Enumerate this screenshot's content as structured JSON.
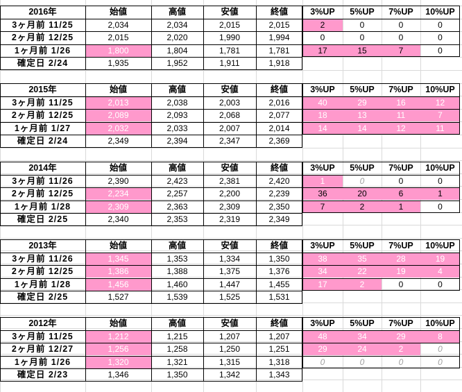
{
  "headers": [
    "始値",
    "高値",
    "安値",
    "終値",
    "3%UP",
    "5%UP",
    "7%UP",
    "10%UP"
  ],
  "colors": {
    "highlight": "#ff99cc",
    "grid": "#d9d9d9",
    "border": "#000000"
  },
  "blocks": [
    {
      "year": "2016年",
      "rows": [
        {
          "label": "3ヶ月前  11/25",
          "prices": [
            "2,034",
            "2,034",
            "2,015",
            "2,015"
          ],
          "ups": [
            "2",
            "0",
            "0",
            "0"
          ],
          "pink_open": false,
          "pink_ups": [
            true,
            false,
            false,
            false
          ],
          "italic_ups": [
            false,
            false,
            false,
            false
          ]
        },
        {
          "label": "2ヶ月前  12/25",
          "prices": [
            "2,015",
            "2,020",
            "1,990",
            "1,994"
          ],
          "ups": [
            "0",
            "0",
            "0",
            "0"
          ],
          "pink_open": false,
          "pink_ups": [
            false,
            false,
            false,
            false
          ],
          "italic_ups": [
            false,
            false,
            false,
            false
          ]
        },
        {
          "label": "1ヶ月前  1/26",
          "prices": [
            "1,800",
            "1,804",
            "1,781",
            "1,781"
          ],
          "ups": [
            "17",
            "15",
            "7",
            "0"
          ],
          "pink_open": true,
          "pink_ups": [
            true,
            true,
            true,
            false
          ],
          "italic_ups": [
            false,
            false,
            false,
            false
          ]
        },
        {
          "label": "確定日  2/24",
          "prices": [
            "1,935",
            "1,952",
            "1,911",
            "1,918"
          ],
          "ups": [
            "",
            "",
            "",
            ""
          ],
          "pink_open": false,
          "pink_ups": [
            false,
            false,
            false,
            false
          ],
          "italic_ups": [
            false,
            false,
            false,
            false
          ]
        }
      ]
    },
    {
      "year": "2015年",
      "rows": [
        {
          "label": "3ヶ月前  11/25",
          "prices": [
            "2,013",
            "2,038",
            "2,003",
            "2,016"
          ],
          "ups": [
            "40",
            "29",
            "16",
            "12"
          ],
          "pink_open": true,
          "pink_ups": [
            true,
            true,
            true,
            true
          ],
          "italic_ups": [
            false,
            false,
            false,
            false
          ]
        },
        {
          "label": "2ヶ月前  12/25",
          "prices": [
            "2,089",
            "2,093",
            "2,068",
            "2,077"
          ],
          "ups": [
            "18",
            "13",
            "11",
            "7"
          ],
          "pink_open": true,
          "pink_ups": [
            true,
            true,
            true,
            true
          ],
          "italic_ups": [
            false,
            false,
            false,
            false
          ]
        },
        {
          "label": "1ヶ月前  1/27",
          "prices": [
            "2,032",
            "2,033",
            "2,007",
            "2,014"
          ],
          "ups": [
            "14",
            "14",
            "12",
            "11"
          ],
          "pink_open": true,
          "pink_ups": [
            true,
            true,
            true,
            true
          ],
          "italic_ups": [
            false,
            false,
            false,
            false
          ]
        },
        {
          "label": "確定日  2/24",
          "prices": [
            "2,349",
            "2,394",
            "2,347",
            "2,369"
          ],
          "ups": [
            "",
            "",
            "",
            ""
          ],
          "pink_open": false,
          "pink_ups": [
            false,
            false,
            false,
            false
          ],
          "italic_ups": [
            false,
            false,
            false,
            false
          ]
        }
      ]
    },
    {
      "year": "2014年",
      "rows": [
        {
          "label": "3ヶ月前  11/26",
          "prices": [
            "2,390",
            "2,423",
            "2,381",
            "2,420"
          ],
          "ups": [
            "1",
            "0",
            "0",
            "0"
          ],
          "pink_open": false,
          "pink_ups": [
            true,
            false,
            false,
            false
          ],
          "italic_ups": [
            false,
            true,
            false,
            false
          ]
        },
        {
          "label": "2ヶ月前  12/25",
          "prices": [
            "2,234",
            "2,257",
            "2,200",
            "2,239"
          ],
          "ups": [
            "36",
            "20",
            "6",
            "1"
          ],
          "pink_open": true,
          "pink_ups": [
            true,
            true,
            true,
            true
          ],
          "italic_ups": [
            false,
            false,
            false,
            false
          ]
        },
        {
          "label": "1ヶ月前  1/28",
          "prices": [
            "2,309",
            "2,363",
            "2,309",
            "2,350"
          ],
          "ups": [
            "7",
            "2",
            "1",
            "0"
          ],
          "pink_open": true,
          "pink_ups": [
            true,
            true,
            true,
            false
          ],
          "italic_ups": [
            false,
            false,
            false,
            false
          ]
        },
        {
          "label": "確定日  2/25",
          "prices": [
            "2,340",
            "2,353",
            "2,319",
            "2,349"
          ],
          "ups": [
            "",
            "",
            "",
            ""
          ],
          "pink_open": false,
          "pink_ups": [
            false,
            false,
            false,
            false
          ],
          "italic_ups": [
            false,
            false,
            false,
            false
          ]
        }
      ]
    },
    {
      "year": "2013年",
      "rows": [
        {
          "label": "3ヶ月前  11/26",
          "prices": [
            "1,345",
            "1,353",
            "1,334",
            "1,350"
          ],
          "ups": [
            "38",
            "35",
            "28",
            "19"
          ],
          "pink_open": true,
          "pink_ups": [
            true,
            true,
            true,
            true
          ],
          "italic_ups": [
            false,
            false,
            false,
            false
          ]
        },
        {
          "label": "2ヶ月前  12/25",
          "prices": [
            "1,386",
            "1,388",
            "1,375",
            "1,376"
          ],
          "ups": [
            "34",
            "22",
            "19",
            "4"
          ],
          "pink_open": true,
          "pink_ups": [
            true,
            true,
            true,
            true
          ],
          "italic_ups": [
            false,
            false,
            false,
            false
          ]
        },
        {
          "label": "1ヶ月前  1/28",
          "prices": [
            "1,456",
            "1,460",
            "1,447",
            "1,455"
          ],
          "ups": [
            "17",
            "2",
            "0",
            "0"
          ],
          "pink_open": true,
          "pink_ups": [
            true,
            true,
            false,
            false
          ],
          "italic_ups": [
            false,
            false,
            false,
            false
          ]
        },
        {
          "label": "確定日  2/25",
          "prices": [
            "1,527",
            "1,539",
            "1,525",
            "1,531"
          ],
          "ups": [
            "",
            "",
            "",
            ""
          ],
          "pink_open": false,
          "pink_ups": [
            false,
            false,
            false,
            false
          ],
          "italic_ups": [
            false,
            false,
            false,
            false
          ]
        }
      ]
    },
    {
      "year": "2012年",
      "rows": [
        {
          "label": "3ヶ月前  11/25",
          "prices": [
            "1,212",
            "1,215",
            "1,207",
            "1,207"
          ],
          "ups": [
            "48",
            "34",
            "29",
            "8"
          ],
          "pink_open": true,
          "pink_ups": [
            true,
            true,
            true,
            true
          ],
          "italic_ups": [
            false,
            false,
            false,
            false
          ]
        },
        {
          "label": "2ヶ月前  12/27",
          "prices": [
            "1,256",
            "1,258",
            "1,250",
            "1,251"
          ],
          "ups": [
            "29",
            "24",
            "2",
            "0"
          ],
          "pink_open": true,
          "pink_ups": [
            true,
            true,
            true,
            false
          ],
          "italic_ups": [
            false,
            false,
            false,
            true
          ]
        },
        {
          "label": "1ヶ月前  1/26",
          "prices": [
            "1,320",
            "1,321",
            "1,315",
            "1,318"
          ],
          "ups": [
            "0",
            "0",
            "0",
            "0"
          ],
          "pink_open": true,
          "pink_ups": [
            false,
            false,
            false,
            false
          ],
          "italic_ups": [
            true,
            true,
            true,
            true
          ]
        },
        {
          "label": "確定日  2/23",
          "prices": [
            "1,346",
            "1,350",
            "1,342",
            "1,343"
          ],
          "ups": [
            "",
            "",
            "",
            ""
          ],
          "pink_open": false,
          "pink_ups": [
            false,
            false,
            false,
            false
          ],
          "italic_ups": [
            false,
            false,
            false,
            false
          ]
        }
      ]
    }
  ]
}
